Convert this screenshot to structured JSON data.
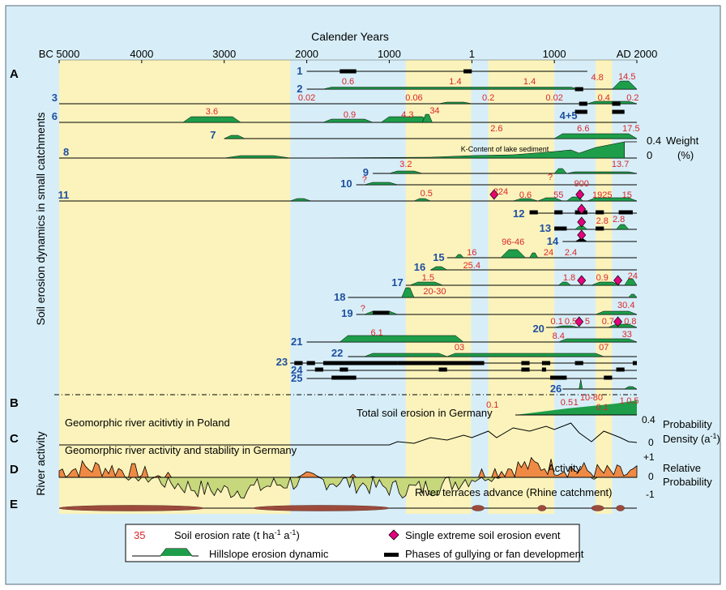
{
  "header": {
    "title": "Calender Years"
  },
  "axis": {
    "ticks": [
      {
        "label": "BC 5000",
        "year": -5000
      },
      {
        "label": "4000",
        "year": -4000
      },
      {
        "label": "3000",
        "year": -3000
      },
      {
        "label": "2000",
        "year": -2000
      },
      {
        "label": "1000",
        "year": -1000
      },
      {
        "label": "1",
        "year": 1
      },
      {
        "label": "1000",
        "year": 1000
      },
      {
        "label": "AD 2000",
        "year": 2000
      }
    ]
  },
  "bands": [
    [
      -5000,
      -2200
    ],
    [
      -800,
      -8
    ],
    [
      200,
      350
    ],
    [
      1000,
      300
    ],
    [
      1500,
      1700
    ]
  ],
  "panels": {
    "A": "A",
    "B": "B",
    "C": "C",
    "D": "D",
    "E": "E",
    "A_label": "Soil erosion dynamics in small catchments",
    "CD_label": "River activity"
  },
  "catchments": [
    {
      "id": "1",
      "label": "1",
      "bars": [
        [
          -1600,
          -1400
        ],
        [
          -100,
          0
        ]
      ]
    },
    {
      "id": "2",
      "label": "2",
      "rates": [
        "0.6",
        "1.4",
        "1.4",
        "4.8",
        "14.5"
      ]
    },
    {
      "id": "3",
      "label": "3",
      "rates": [
        "0.02",
        "0.06",
        "0.2",
        "0.02",
        "0.4",
        "0.2"
      ]
    },
    {
      "id": "6",
      "label": "6",
      "rates": [
        "3.6",
        "0.9",
        "4.3",
        "34"
      ]
    },
    {
      "id": "45",
      "label": "4+5"
    },
    {
      "id": "7",
      "label": "7",
      "rates": [
        "2.6",
        "6.6",
        "17.5"
      ]
    },
    {
      "id": "8",
      "label": "8",
      "note": "K-Content of lake sediment"
    },
    {
      "id": "9",
      "label": "9",
      "rates": [
        "3.2",
        "13.7"
      ]
    },
    {
      "id": "10",
      "label": "10",
      "rates": [
        "?",
        "?"
      ]
    },
    {
      "id": "11",
      "label": "11",
      "rates": [
        "0.5",
        "224",
        "0.6",
        "55",
        "900",
        "1925",
        "15"
      ]
    },
    {
      "id": "12",
      "label": "12"
    },
    {
      "id": "13",
      "label": "13",
      "rates": [
        "2.8",
        "2.8"
      ]
    },
    {
      "id": "14",
      "label": "14"
    },
    {
      "id": "15",
      "label": "15",
      "rates": [
        "16",
        "96-46",
        "24",
        "2.4"
      ]
    },
    {
      "id": "16",
      "label": "16",
      "rates": [
        "25.4"
      ]
    },
    {
      "id": "17",
      "label": "17",
      "rates": [
        "1.5",
        "1.8",
        "0.9",
        "24"
      ]
    },
    {
      "id": "18",
      "label": "18",
      "rates": [
        "20-30"
      ]
    },
    {
      "id": "19",
      "label": "19",
      "rates": [
        "?",
        "30.4"
      ]
    },
    {
      "id": "20",
      "label": "20",
      "rates": [
        "0.1",
        "0.5",
        "5",
        "0.7",
        "0.8"
      ]
    },
    {
      "id": "21",
      "label": "21",
      "rates": [
        "6.1",
        "8.4",
        "33"
      ]
    },
    {
      "id": "22",
      "label": "22",
      "rates": [
        "03",
        "07"
      ]
    },
    {
      "id": "23",
      "label": "23"
    },
    {
      "id": "24",
      "label": "24"
    },
    {
      "id": "25",
      "label": "25"
    },
    {
      "id": "26",
      "label": "26"
    }
  ],
  "weight": {
    "v1": "0.4",
    "v0": "0",
    "label": "Weight",
    "unit": "(%)"
  },
  "panelB": {
    "label": "Total soil erosion in Germany",
    "rates": [
      "0.1",
      "0.5",
      "1",
      "10-80",
      "0.1",
      "1",
      "0.5"
    ]
  },
  "panelC": {
    "label": "Geomorphic river acitivtiy in Poland",
    "v1": "0.4",
    "v0": "0",
    "right1": "Probability",
    "right2": "Density (a",
    "right2sup": "-1",
    "right2end": ")"
  },
  "panelD": {
    "label": "Geomorphic river activity and stability in Germany",
    "activity": "Activity",
    "p1": "+1",
    "p0": "0",
    "pm1": "-1",
    "right1": "Relative",
    "right2": "Probability"
  },
  "panelE": {
    "label": "River terraces advance (Rhine catchment)"
  },
  "legend": {
    "rate_sample": "35",
    "rate_label": "Soil erosion rate (t ha",
    "rate_sup1": "-1",
    "rate_mid": " a",
    "rate_sup2": "-1",
    "rate_end": ")",
    "event_label": "Single extreme soil erosion event",
    "hill_label": "Hillslope erosion dynamic",
    "gully_label": "Phases of gullying or fan development"
  },
  "colors": {
    "bg": "#d7eef8",
    "band": "#fbf3bb",
    "green": "#1e9e4a",
    "red": "#d9262a",
    "blue": "#1f4fa0",
    "magenta": "#e6007e",
    "orange": "#ef8a45",
    "olive": "#c7d77c",
    "brown": "#9c4a3c"
  }
}
